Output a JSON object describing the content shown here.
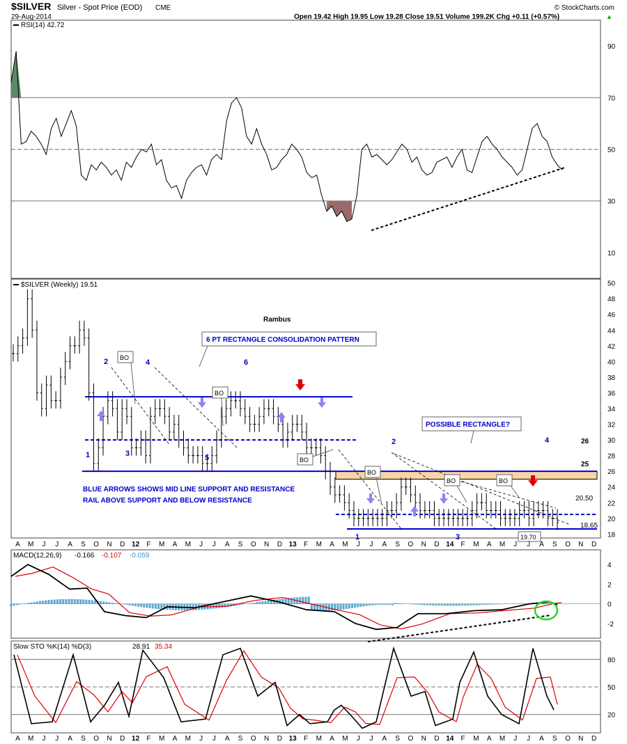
{
  "header": {
    "symbol": "$SILVER",
    "description": "Silver - Spot Price (EOD)",
    "exchange": "CME",
    "date": "29-Aug-2014",
    "quote": "Open 19.42  High 19.95  Low 19.28  Close 19.51  Volume 199.2K  Chg +0.11 (+0.57%)",
    "quote_arrow": "▲",
    "brand": "© StockCharts.com"
  },
  "colors": {
    "blue": "#0000cc",
    "lightblue": "#8888ee",
    "red": "#dd0000",
    "orange_band": "#f8d5a8",
    "rsi_green": "#5a8a6a",
    "rsi_brown": "#9a6a6a",
    "macd_hist": "#5aa8d0",
    "grid": "#888888",
    "green_circle": "#22dd22"
  },
  "x_axis": {
    "labels": [
      "A",
      "M",
      "J",
      "J",
      "A",
      "S",
      "O",
      "N",
      "D",
      "12",
      "F",
      "M",
      "A",
      "M",
      "J",
      "J",
      "A",
      "S",
      "O",
      "N",
      "D",
      "13",
      "F",
      "M",
      "A",
      "M",
      "J",
      "J",
      "A",
      "S",
      "O",
      "N",
      "D",
      "14",
      "F",
      "M",
      "A",
      "M",
      "J",
      "J",
      "A",
      "S",
      "O",
      "N",
      "D"
    ],
    "bold": [
      "12",
      "13",
      "14"
    ]
  },
  "chart_data": [
    {
      "type": "line",
      "panel": "rsi",
      "legend": "RSI(14) 42.72",
      "y_ticks": [
        90,
        70,
        50,
        30,
        10
      ],
      "ylim": [
        0,
        100
      ],
      "bands": [
        70,
        50,
        30
      ],
      "series": [
        {
          "values": [
            76,
            88,
            52,
            53,
            57,
            55,
            52,
            48,
            58,
            62,
            55,
            60,
            65,
            59,
            40,
            38,
            44,
            42,
            45,
            43,
            40,
            42,
            38,
            45,
            43,
            47,
            50,
            49,
            52,
            44,
            46,
            38,
            35,
            36,
            31,
            38,
            41,
            43,
            44,
            40,
            46,
            48,
            46,
            61,
            68,
            70,
            66,
            55,
            52,
            58,
            52,
            48,
            42,
            43,
            46,
            48,
            52,
            50,
            47,
            41,
            39,
            40,
            32,
            26,
            28,
            24,
            26,
            22,
            23,
            32,
            50,
            52,
            47,
            48,
            46,
            44,
            46,
            49,
            52,
            50,
            45,
            47,
            42,
            40,
            41,
            45,
            46,
            47,
            43,
            47,
            50,
            42,
            41,
            47,
            53,
            55,
            52,
            50,
            47,
            45,
            43,
            40,
            42,
            50,
            58,
            60,
            55,
            53,
            47,
            44,
            42
          ]
        }
      ]
    },
    {
      "type": "ohlc",
      "panel": "price",
      "legend": "$SILVER (Weekly) 19.51",
      "y_ticks": [
        50,
        48,
        46,
        44,
        42,
        40,
        38,
        36,
        34,
        32,
        30,
        28,
        26,
        24,
        22,
        20,
        18
      ],
      "ylim": [
        17.5,
        50.5
      ],
      "series": [
        {
          "name": "$SILVER",
          "closes": [
            41,
            42,
            43,
            48,
            44,
            36,
            34,
            37,
            35,
            35,
            38,
            40,
            42,
            42,
            44,
            43,
            36,
            27,
            29,
            33,
            35,
            34,
            31,
            34,
            33,
            29,
            29,
            30,
            28,
            33,
            34,
            34,
            33,
            31,
            32,
            30,
            29,
            28,
            28,
            28,
            27,
            27,
            28,
            30,
            33,
            34,
            35,
            35,
            34,
            33,
            32,
            32,
            33,
            34,
            34,
            33,
            32,
            30,
            31,
            32,
            32,
            31,
            29,
            29,
            29,
            28,
            26,
            24,
            23,
            23,
            22,
            21,
            20,
            20,
            20,
            20,
            20,
            20,
            20,
            21,
            21,
            22,
            24,
            24,
            23,
            22,
            21,
            21,
            21,
            20,
            20,
            20,
            20,
            20,
            20,
            20,
            20,
            21,
            22,
            22,
            21,
            21,
            21,
            20,
            20,
            20,
            20,
            21,
            21,
            20,
            21,
            21,
            21,
            20,
            20,
            19.51
          ]
        }
      ],
      "annotations": {
        "title": "Rambus",
        "pattern_label": "6 PT RECTANGLE CONSOLIDATION PATTERN",
        "possible_label": "POSSIBLE RECTANGLE?",
        "note_line1": "BLUE ARROWS SHOWS MID LINE SUPPORT AND RESISTANCE",
        "note_line2": "RAIL ABOVE SUPPORT AND BELOW RESISTANCE",
        "bo": "BO",
        "level_26": "26",
        "level_25": "25",
        "level_2050": "20.50",
        "level_1865": "18.65",
        "level_1970": "19.70",
        "pts": [
          "1",
          "2",
          "3",
          "4",
          "5",
          "6"
        ],
        "pts2": [
          "1",
          "2",
          "3",
          "4"
        ]
      }
    },
    {
      "type": "line",
      "panel": "macd",
      "legend_prefix": "MACD(12,26,9)",
      "legend_macd": "-0.166",
      "legend_signal": "-0.107",
      "legend_hist": "-0.059",
      "y_ticks": [
        4,
        2,
        0,
        -2
      ],
      "ylim": [
        -3.5,
        5.5
      ]
    },
    {
      "type": "line",
      "panel": "sto",
      "legend_prefix": "Slow STO %K(14) %D(3)",
      "legend_k": "28.91",
      "legend_d": "35.34",
      "y_ticks": [
        80,
        50,
        20
      ],
      "ylim": [
        0,
        100
      ],
      "bands": [
        80,
        50,
        20
      ]
    }
  ]
}
